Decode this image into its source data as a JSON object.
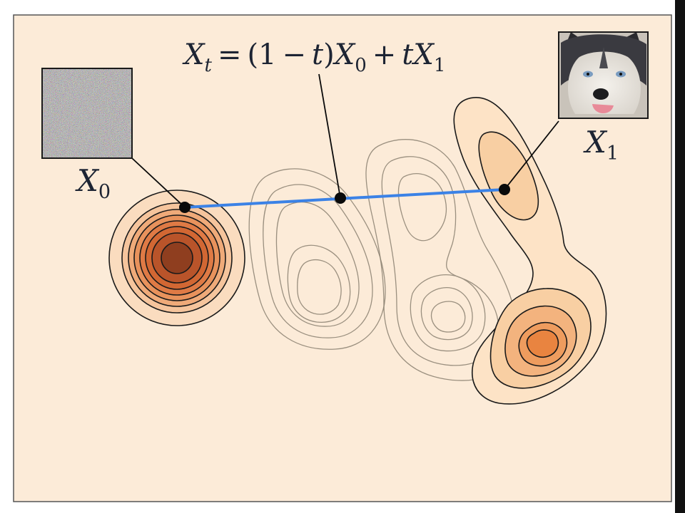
{
  "panel": {
    "background": "#fcebd8",
    "border": "#555555"
  },
  "equation": {
    "text": "X_t = (1 - t)X_0 + tX_1",
    "lhs_var": "X",
    "lhs_sub": "t",
    "eq": "=",
    "open": "(1",
    "minus": "−",
    "t_var": "t",
    "close": ")",
    "x0_var": "X",
    "x0_sub": "0",
    "plus": "+",
    "t2_var": "t",
    "x1_var": "X",
    "x1_sub": "1"
  },
  "labels": {
    "x0": {
      "var": "X",
      "sub": "0"
    },
    "x1": {
      "var": "X",
      "sub": "1"
    }
  },
  "images": {
    "noise": "noise-image",
    "target": "husky-dog-photo"
  },
  "colors": {
    "path": "#3b82e6",
    "point": "#0a0a0a",
    "contour_dark": "#1a1a1a",
    "contour_faint": "#8a8070",
    "source_fills": [
      "#fadcbf",
      "#f5c49c",
      "#efaa79",
      "#e8925c",
      "#df7a45",
      "#d26733",
      "#b9542a",
      "#8f3e1f"
    ],
    "target_fills": [
      "#fde3c6",
      "#f8cfa3",
      "#f3b37e",
      "#ee9c5e",
      "#e98440"
    ]
  }
}
